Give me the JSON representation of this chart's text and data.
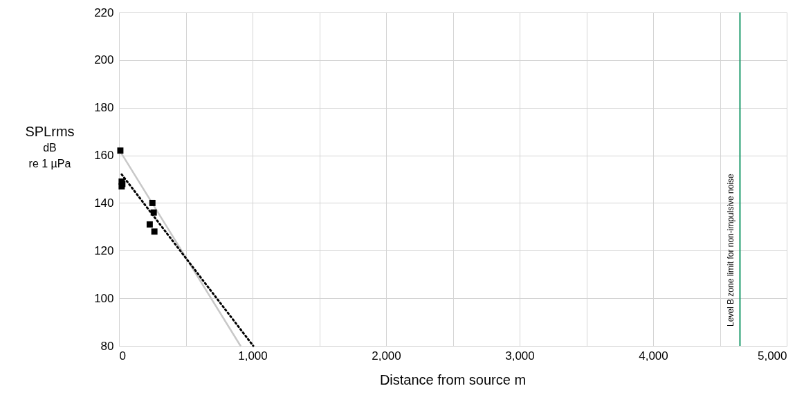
{
  "chart_data": {
    "type": "scatter",
    "xlabel": "Distance from source m",
    "ylabel": "SPLrms",
    "annotations": [
      "dB",
      "re 1 µPa"
    ],
    "xlim": [
      0,
      5000
    ],
    "ylim": [
      80,
      220
    ],
    "xticks": [
      0,
      {
        "value": 500,
        "label": null
      },
      {
        "value": 1000,
        "label": "1,000"
      },
      {
        "value": 1500,
        "label": null
      },
      {
        "value": 2000,
        "label": "2,000"
      },
      {
        "value": 2500,
        "label": null
      },
      {
        "value": 3000,
        "label": "3,000"
      },
      {
        "value": 3500,
        "label": null
      },
      {
        "value": 4000,
        "label": "4,000"
      },
      {
        "value": 4500,
        "label": null
      },
      {
        "value": 5000,
        "label": "5,000"
      }
    ],
    "yticks": [
      80,
      100,
      120,
      140,
      160,
      180,
      200,
      220
    ],
    "grid": true,
    "series": [
      {
        "type": "line",
        "color": "#c8c8c8",
        "line_style": "solid",
        "marker": "none",
        "x": [
          5,
          910
        ],
        "values": [
          162,
          80
        ]
      },
      {
        "type": "line",
        "color": "#000000",
        "line_style": "dotted",
        "marker": "none",
        "x": [
          20,
          1005
        ],
        "values": [
          152,
          80
        ]
      },
      {
        "type": "scatter",
        "color": "#000000",
        "marker": "square",
        "x": [
          10,
          20,
          25,
          20,
          250,
          260,
          230,
          265
        ],
        "values": [
          162,
          149,
          148,
          147,
          140,
          136,
          131,
          128
        ]
      }
    ],
    "ref_lines": [
      {
        "axis": "x",
        "value": 4650,
        "label": "Level B zone limit for non-impulsive noise",
        "color": "#1a9a6a",
        "line_style": "solid"
      }
    ]
  }
}
